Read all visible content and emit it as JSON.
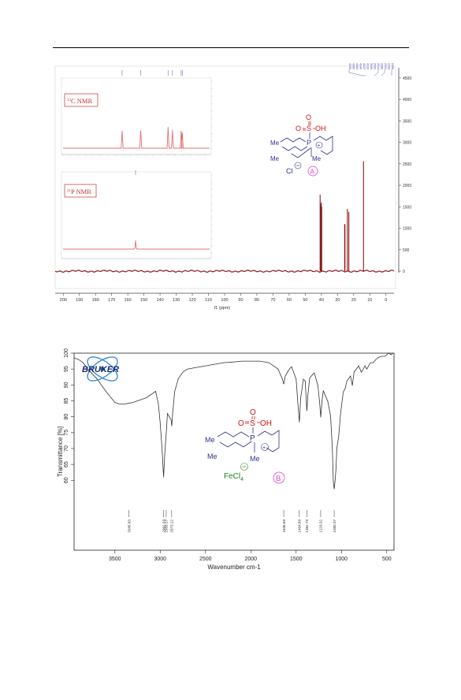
{
  "page": {
    "rule": true
  },
  "nmr": {
    "x_axis_label": "f1 (ppm)",
    "x_ticks": [
      200,
      190,
      180,
      170,
      160,
      150,
      140,
      130,
      120,
      110,
      100,
      90,
      80,
      70,
      60,
      50,
      40,
      30,
      20,
      10,
      0
    ],
    "y_ticks": [
      4500,
      4000,
      3500,
      3000,
      2500,
      2000,
      1500,
      1000,
      500,
      0
    ],
    "peak_list_labels": [
      "40.96",
      "40.80",
      "40.63",
      "40.46",
      "40.29",
      "40.13",
      "39.96",
      "25.63",
      "25.44",
      "23.86",
      "23.09",
      "22.98",
      "13.86"
    ],
    "line_color": "#8b1a1a",
    "inset_c13": {
      "label_sup": "13",
      "label": "C NMR",
      "peak_ppm": [
        178,
        161,
        136,
        132,
        124,
        123
      ]
    },
    "inset_p31": {
      "label_sup": "31",
      "label": "P NMR"
    },
    "structure": {
      "so3h": "O",
      "s": "S",
      "oh": "OH",
      "p": "P",
      "me": "Me",
      "cl": "Cl",
      "badge": "A"
    }
  },
  "chart_data": [
    {
      "type": "line",
      "title": "",
      "xlabel": "f1 (ppm)",
      "ylabel": "",
      "xlim": [
        205,
        -5
      ],
      "ylim": [
        -200,
        4700
      ],
      "x_inverted": true,
      "series": [
        {
          "peaks": [
            {
              "x": 40.8,
              "y": 1780
            },
            {
              "x": 40.5,
              "y": 1560
            },
            {
              "x": 40.1,
              "y": 1600
            },
            {
              "x": 39.8,
              "y": 1500
            },
            {
              "x": 25.6,
              "y": 1100
            },
            {
              "x": 25.4,
              "y": 1080
            },
            {
              "x": 23.9,
              "y": 1450
            },
            {
              "x": 23.0,
              "y": 1380
            },
            {
              "x": 13.9,
              "y": 2560
            }
          ]
        }
      ]
    },
    {
      "type": "line",
      "title": "",
      "xlabel": "Wavenumber cm-1",
      "ylabel": "Transmittance [%]",
      "xlim": [
        3950,
        420
      ],
      "ylim": [
        38,
        100
      ],
      "x_inverted": true,
      "x_ticks": [
        3500,
        3000,
        2500,
        2000,
        1500,
        1000,
        500
      ],
      "y_ticks": [
        100,
        95,
        90,
        85,
        80,
        75,
        70,
        65,
        60
      ],
      "peak_labels": [
        {
          "x": 3345.83,
          "label": "3345.83"
        },
        {
          "x": 2962.03,
          "label": "2962.03"
        },
        {
          "x": 2933.17,
          "label": "2933.17"
        },
        {
          "x": 2873.22,
          "label": "2873.22"
        },
        {
          "x": 1636.69,
          "label": "1636.69"
        },
        {
          "x": 1464.89,
          "label": "1464.89"
        },
        {
          "x": 1382.73,
          "label": "1382.73"
        },
        {
          "x": 1229.32,
          "label": "1229.32"
        },
        {
          "x": 1080.37,
          "label": "1080.37"
        }
      ],
      "series": [
        {
          "x": [
            3950,
            3900,
            3850,
            3800,
            3700,
            3600,
            3500,
            3450,
            3400,
            3350,
            3300,
            3250,
            3200,
            3150,
            3100,
            3050,
            3020,
            3000,
            2980,
            2962,
            2950,
            2933,
            2920,
            2900,
            2880,
            2873,
            2860,
            2840,
            2800,
            2750,
            2700,
            2600,
            2500,
            2400,
            2300,
            2200,
            2100,
            2000,
            1900,
            1800,
            1700,
            1650,
            1636,
            1620,
            1580,
            1550,
            1500,
            1480,
            1464,
            1450,
            1420,
            1400,
            1382,
            1370,
            1350,
            1300,
            1260,
            1240,
            1229,
            1215,
            1200,
            1180,
            1150,
            1120,
            1100,
            1090,
            1080,
            1070,
            1060,
            1050,
            1030,
            1010,
            1000,
            980,
            960,
            940,
            900,
            880,
            860,
            840,
            810,
            780,
            760,
            740,
            720,
            700,
            680,
            650,
            620,
            600,
            560,
            520,
            480,
            450,
            430,
            420
          ],
          "y": [
            98.5,
            98,
            97,
            95,
            92,
            88,
            84.5,
            84,
            84,
            84.2,
            84.5,
            85,
            85.5,
            86,
            87,
            88,
            84,
            78,
            70,
            61,
            68,
            75,
            81,
            80,
            79,
            77,
            82,
            88,
            92,
            94,
            95,
            95.5,
            96,
            96.5,
            97,
            97.2,
            97.5,
            97.5,
            97.5,
            97,
            95,
            92,
            90,
            93,
            95,
            95.5,
            92,
            84,
            78,
            86,
            92,
            91,
            82,
            87,
            92,
            94,
            90,
            84,
            80,
            85,
            88,
            87,
            85,
            80,
            70,
            60,
            57,
            60,
            64,
            70,
            74,
            81,
            83,
            88,
            89,
            91,
            93,
            90,
            94,
            95,
            96,
            94,
            95,
            96,
            95,
            96,
            97,
            97,
            98,
            98.5,
            99,
            99,
            100,
            99.5,
            100,
            100
          ]
        }
      ]
    }
  ],
  "ir": {
    "logo_text": "BRUKER",
    "structure": {
      "o": "O",
      "s": "S",
      "oh": "OH",
      "p": "P",
      "me": "Me",
      "fecl": "FeCl",
      "four": "4",
      "badge": "B"
    }
  }
}
